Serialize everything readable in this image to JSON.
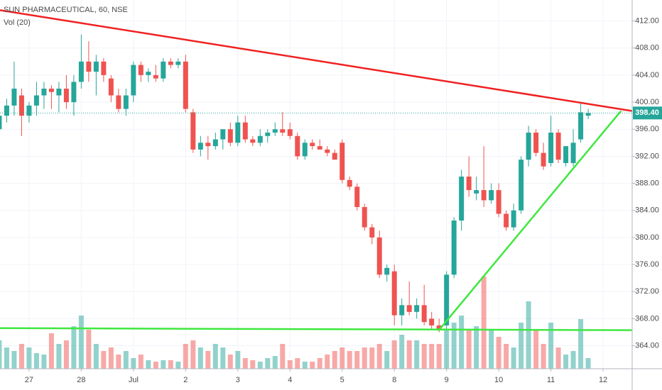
{
  "chart_data": {
    "type": "candlestick",
    "title": "SUN PHARMACEUTICAL, 60, NSE",
    "indicator": "Vol (20)",
    "open": [
      396,
      398,
      399.5,
      401,
      398,
      399.5,
      401,
      402,
      401,
      402,
      400,
      403,
      406,
      404.5,
      406,
      403.5,
      401,
      399,
      401,
      405.5,
      404,
      404,
      403.5,
      406,
      405.5,
      406,
      398.5,
      393,
      394,
      393.5,
      394.5,
      396,
      394,
      397,
      394.5,
      394,
      395,
      395.5,
      396,
      396,
      395,
      392,
      394,
      393.5,
      393,
      392.5,
      394,
      388.5,
      387.5,
      384.5,
      381.5,
      380,
      374.5,
      375,
      368.5,
      370,
      369,
      370,
      368,
      367,
      367,
      374.5,
      382.5,
      389,
      386.5,
      387,
      385.5,
      387,
      383.5,
      381.5,
      384,
      391.5,
      395.5,
      392.5,
      391,
      395.5,
      391,
      391,
      394.5,
      398
    ],
    "high": [
      399,
      400.5,
      406,
      402,
      400,
      403,
      403,
      402.5,
      403,
      404,
      404,
      410,
      409,
      407,
      406.5,
      404,
      402,
      402,
      406,
      406,
      405,
      405.5,
      406.5,
      406.5,
      406.5,
      407,
      399,
      395,
      395,
      395.5,
      396,
      397,
      398,
      398,
      395,
      396,
      396,
      397,
      398.5,
      397,
      395.5,
      394.5,
      394.5,
      394.5,
      393.5,
      393,
      394.5,
      389,
      388,
      385,
      382,
      381,
      376,
      376,
      371,
      373.5,
      371,
      373,
      369,
      368,
      375,
      383,
      390,
      392,
      389,
      393.5,
      388,
      388,
      384,
      385,
      392,
      396.5,
      396,
      394,
      398,
      396,
      393.5,
      396,
      400,
      399
    ],
    "low": [
      395.5,
      397,
      398,
      395,
      397,
      398,
      399,
      399,
      398.5,
      399,
      398,
      402,
      403,
      401,
      403,
      400,
      398.5,
      398,
      400,
      403,
      403,
      403,
      403,
      405,
      405,
      398.5,
      392.5,
      392,
      391.5,
      393,
      393,
      393.5,
      393.5,
      394,
      393.5,
      393.5,
      394,
      395,
      395,
      394.5,
      391.5,
      391.5,
      393,
      393,
      392,
      391.5,
      388,
      387,
      384,
      381,
      379,
      374,
      373.5,
      367,
      367,
      368.5,
      368,
      367,
      366.5,
      366,
      366.5,
      374,
      381,
      386,
      385.5,
      384.5,
      385,
      383,
      381,
      381,
      383.5,
      390.5,
      392,
      390,
      390.5,
      391,
      390.5,
      390.5,
      394,
      397.5
    ],
    "close": [
      398,
      399.5,
      402,
      398,
      399.5,
      401,
      402,
      401.5,
      402,
      400,
      403,
      406,
      404.5,
      406,
      404,
      401,
      399,
      401,
      405.5,
      404,
      404.5,
      403.5,
      406,
      405.5,
      406,
      399,
      393,
      394,
      393.5,
      394.5,
      396,
      394,
      397,
      394.5,
      394,
      395,
      395.5,
      396,
      395.5,
      395,
      392,
      394,
      393.5,
      393,
      392.5,
      391.5,
      388.5,
      387.5,
      384.5,
      381.5,
      380,
      374.5,
      375.5,
      368.5,
      370,
      369,
      370,
      367.5,
      367,
      366.5,
      374.5,
      382.5,
      389,
      387,
      387,
      385.5,
      387,
      383.5,
      381.5,
      384,
      391.5,
      395.5,
      392.5,
      390.5,
      395.5,
      391.5,
      393.5,
      394,
      398.5,
      398.4
    ],
    "volume": [
      40,
      30,
      25,
      35,
      30,
      22,
      20,
      50,
      35,
      40,
      60,
      75,
      55,
      35,
      25,
      30,
      20,
      25,
      15,
      20,
      12,
      10,
      12,
      12,
      10,
      35,
      40,
      30,
      25,
      35,
      30,
      20,
      25,
      15,
      12,
      10,
      15,
      18,
      35,
      12,
      15,
      10,
      10,
      15,
      20,
      25,
      30,
      25,
      25,
      30,
      30,
      35,
      25,
      40,
      48,
      40,
      40,
      35,
      35,
      35,
      55,
      65,
      75,
      55,
      60,
      130,
      55,
      45,
      35,
      30,
      65,
      95,
      55,
      35,
      65,
      30,
      20,
      25,
      70,
      15
    ],
    "up_color": "#26a69a",
    "down_color": "#ef5350",
    "xlim": [
      0.1,
      84.9
    ],
    "xticks": [
      {
        "value": 4,
        "label": "27"
      },
      {
        "value": 11,
        "label": "28"
      },
      {
        "value": 18,
        "label": "Jul"
      },
      {
        "value": 25,
        "label": "2"
      },
      {
        "value": 32,
        "label": "3"
      },
      {
        "value": 39,
        "label": "4"
      },
      {
        "value": 46,
        "label": "5"
      },
      {
        "value": 53,
        "label": "8"
      },
      {
        "value": 60,
        "label": "9"
      },
      {
        "value": 67,
        "label": "10"
      },
      {
        "value": 74,
        "label": "11"
      },
      {
        "value": 81,
        "label": "12"
      }
    ],
    "ylim": [
      360.6,
      415.1
    ],
    "yticks": [
      {
        "value": 364,
        "label": "364.00"
      },
      {
        "value": 368,
        "label": "368.00"
      },
      {
        "value": 372,
        "label": "372.00"
      },
      {
        "value": 376,
        "label": "376.00"
      },
      {
        "value": 380,
        "label": "380.00"
      },
      {
        "value": 384,
        "label": "384.00"
      },
      {
        "value": 388,
        "label": "388.00"
      },
      {
        "value": 392,
        "label": "392.00"
      },
      {
        "value": 396,
        "label": "396.00"
      },
      {
        "value": 400,
        "label": "400.00"
      },
      {
        "value": 404,
        "label": "404.00"
      },
      {
        "value": 408,
        "label": "408.00"
      },
      {
        "value": 412,
        "label": "412.00"
      }
    ],
    "vlim": [
      0,
      140
    ],
    "grid": true,
    "last_price": {
      "value": 398.4,
      "label": "398.40"
    },
    "lines": [
      {
        "color": "#f02020",
        "points": [
          [
            0.1,
            413.6
          ],
          [
            84.9,
            398.7
          ]
        ]
      },
      {
        "color": "#3ee83e",
        "points": [
          [
            0.1,
            366.6
          ],
          [
            84.9,
            366.3
          ]
        ]
      },
      {
        "color": "#3ee83e",
        "points": [
          [
            58.9,
            366.2
          ],
          [
            83.4,
            398.7
          ]
        ]
      }
    ]
  }
}
